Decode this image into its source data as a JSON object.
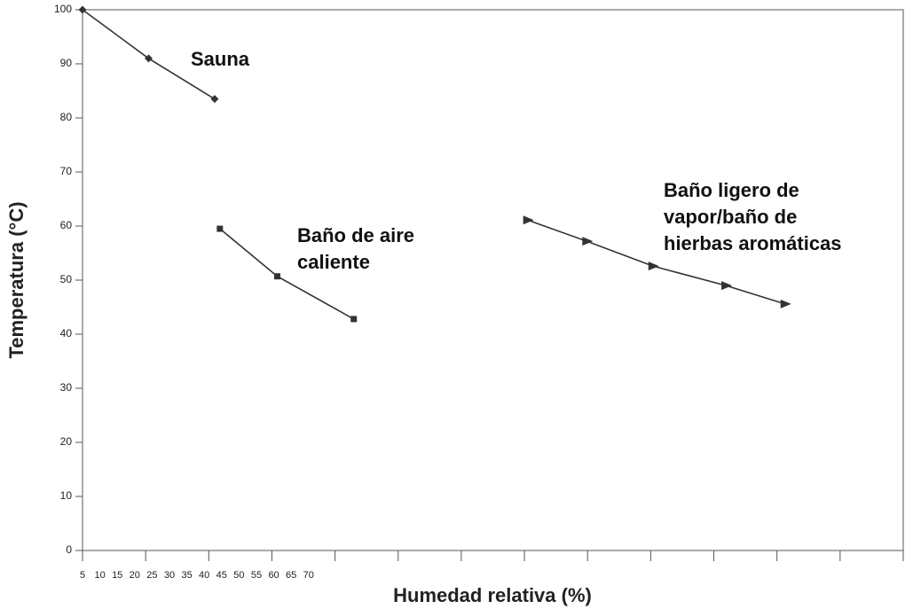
{
  "chart_data": {
    "type": "line",
    "xlabel": "Humedad relativa (%)",
    "ylabel": "Temperatura (°C)",
    "xlim": [
      5,
      241
    ],
    "xticks": [
      5,
      10,
      15,
      20,
      25,
      30,
      35,
      40,
      45,
      50,
      55,
      60,
      65,
      70
    ],
    "ylim": [
      0,
      100
    ],
    "yticks": [
      0,
      10,
      20,
      30,
      40,
      50,
      60,
      70,
      80,
      90,
      100
    ],
    "series": [
      {
        "name": "Sauna",
        "color": "#333333",
        "marker": "diamond",
        "x": [
          5,
          24,
          43
        ],
        "values": [
          100,
          91,
          83.5
        ]
      },
      {
        "name": "Baño de aire\ncaliente",
        "color": "#333333",
        "marker": "square",
        "x": [
          44.5,
          61,
          83
        ],
        "values": [
          59.5,
          50.7,
          42.8
        ]
      },
      {
        "name": "Baño ligero de\nvapor/baño de\nhierbas aromáticas",
        "color": "#333333",
        "marker": "triangle",
        "x": [
          133,
          150,
          169,
          190,
          207
        ],
        "values": [
          61.1,
          57.2,
          52.6,
          49,
          45.6
        ]
      }
    ]
  }
}
